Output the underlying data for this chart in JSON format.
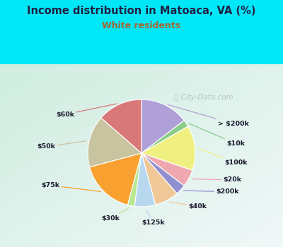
{
  "title": "Income distribution in Matoaca, VA (%)",
  "subtitle": "White residents",
  "watermark": "⭘ City-Data.com",
  "slices": [
    {
      "label": "> $200k",
      "value": 14,
      "color": "#b0a0d8"
    },
    {
      "label": "$10k",
      "value": 2,
      "color": "#88cc88"
    },
    {
      "label": "$100k",
      "value": 13,
      "color": "#f0f080"
    },
    {
      "label": "$20k",
      "value": 5,
      "color": "#f0a8b0"
    },
    {
      "label": "$200k",
      "value": 3,
      "color": "#9090d0"
    },
    {
      "label": "$40k",
      "value": 7,
      "color": "#f0c898"
    },
    {
      "label": "$125k",
      "value": 6,
      "color": "#b8d8f0"
    },
    {
      "label": "$30k",
      "value": 2,
      "color": "#b8e890"
    },
    {
      "label": "$75k",
      "value": 16,
      "color": "#f8a030"
    },
    {
      "label": "$50k",
      "value": 15,
      "color": "#c8c4a0"
    },
    {
      "label": "$60k",
      "value": 13,
      "color": "#d87878"
    }
  ],
  "bg_top": "#00e8f8",
  "bg_chart_tl": "#d0ede0",
  "bg_chart_br": "#f0f8f8",
  "title_color": "#202040",
  "subtitle_color": "#a06830",
  "watermark_color": "#a8b8c0",
  "startangle": 90,
  "figwidth": 4.0,
  "figheight": 3.5,
  "dpi": 100
}
